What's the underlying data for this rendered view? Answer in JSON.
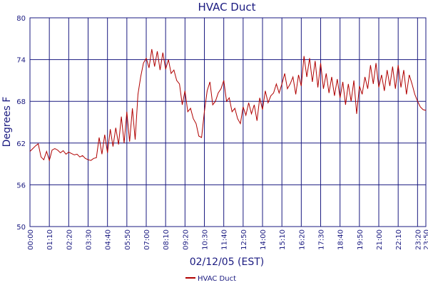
{
  "chart_data": {
    "type": "line",
    "title": "HVAC Duct",
    "x_label": "02/12/05 (EST)",
    "y_label": "Degrees F",
    "x": [
      0,
      10,
      20,
      30,
      40,
      50,
      60,
      70,
      80,
      90,
      100,
      110,
      120,
      130,
      140,
      150,
      160,
      170,
      180,
      190,
      200,
      210,
      220,
      230,
      240,
      250,
      260,
      270,
      280,
      290,
      300,
      310,
      320,
      330,
      340,
      350,
      360,
      370,
      380,
      390,
      400,
      410,
      420,
      430,
      440,
      450,
      460,
      470,
      480,
      490,
      500,
      510,
      520,
      530,
      540,
      550,
      560,
      570,
      580,
      590,
      600,
      610,
      620,
      630,
      640,
      650,
      660,
      670,
      680,
      690,
      700,
      710,
      720,
      730,
      740,
      750,
      760,
      770,
      780,
      790,
      800,
      810,
      820,
      830,
      840,
      850,
      860,
      870,
      880,
      890,
      900,
      910,
      920,
      930,
      940,
      950,
      960,
      970,
      980,
      990,
      1000,
      1010,
      1020,
      1030,
      1040,
      1050,
      1060,
      1070,
      1080,
      1090,
      1100,
      1110,
      1120,
      1130,
      1140,
      1150,
      1160,
      1170,
      1180,
      1190,
      1200,
      1210,
      1220,
      1230,
      1240,
      1250,
      1260,
      1270,
      1280,
      1290,
      1300,
      1310,
      1320,
      1330,
      1340,
      1350,
      1360,
      1370,
      1380,
      1390,
      1400,
      1410,
      1420,
      1430
    ],
    "series": [
      {
        "name": "HVAC Duct",
        "color": "#b00000",
        "values": [
          60.8,
          61.2,
          61.6,
          61.9,
          60.0,
          59.6,
          60.8,
          59.5,
          61.0,
          61.2,
          61.0,
          60.6,
          60.9,
          60.4,
          60.7,
          60.5,
          60.3,
          60.4,
          60.0,
          60.2,
          59.8,
          59.6,
          59.5,
          59.8,
          59.9,
          62.8,
          60.4,
          63.2,
          60.6,
          64.0,
          61.5,
          64.2,
          61.8,
          65.8,
          62.0,
          66.5,
          62.2,
          67.0,
          62.5,
          69.0,
          71.5,
          73.5,
          74.2,
          72.8,
          75.5,
          73.0,
          75.2,
          72.5,
          75.0,
          72.6,
          74.0,
          72.0,
          72.5,
          71.0,
          70.5,
          67.5,
          69.5,
          66.5,
          67.0,
          65.5,
          64.8,
          63.0,
          62.8,
          66.5,
          69.5,
          70.8,
          67.5,
          68.0,
          69.2,
          69.8,
          71.0,
          68.0,
          68.5,
          66.5,
          67.0,
          65.5,
          64.8,
          67.2,
          66.0,
          67.8,
          66.2,
          67.5,
          65.2,
          68.5,
          66.8,
          69.5,
          67.8,
          68.8,
          69.2,
          70.5,
          69.2,
          70.5,
          72.0,
          69.8,
          70.5,
          71.5,
          69.0,
          71.8,
          70.2,
          74.5,
          71.5,
          74.2,
          70.8,
          73.8,
          70.0,
          73.5,
          69.8,
          72.0,
          69.2,
          71.5,
          68.8,
          71.2,
          68.5,
          70.8,
          67.5,
          70.5,
          68.0,
          71.0,
          66.2,
          70.2,
          69.0,
          71.5,
          69.8,
          73.2,
          70.5,
          73.5,
          70.0,
          71.8,
          69.5,
          72.5,
          70.2,
          73.0,
          69.8,
          73.2,
          70.0,
          72.5,
          69.0,
          71.8,
          70.5,
          69.0,
          68.0,
          67.2,
          66.8,
          66.7
        ]
      }
    ],
    "xlim": [
      0,
      1430
    ],
    "xticks": [
      {
        "value": 0,
        "label": "00:00"
      },
      {
        "value": 70,
        "label": "01:10"
      },
      {
        "value": 140,
        "label": "02:20"
      },
      {
        "value": 210,
        "label": "03:30"
      },
      {
        "value": 280,
        "label": "04:40"
      },
      {
        "value": 350,
        "label": "05:50"
      },
      {
        "value": 420,
        "label": "07:00"
      },
      {
        "value": 490,
        "label": "08:10"
      },
      {
        "value": 560,
        "label": "09:20"
      },
      {
        "value": 630,
        "label": "10:30"
      },
      {
        "value": 700,
        "label": "11:40"
      },
      {
        "value": 770,
        "label": "12:50"
      },
      {
        "value": 840,
        "label": "14:00"
      },
      {
        "value": 910,
        "label": "15:10"
      },
      {
        "value": 980,
        "label": "16:20"
      },
      {
        "value": 1050,
        "label": "17:30"
      },
      {
        "value": 1120,
        "label": "18:40"
      },
      {
        "value": 1190,
        "label": "19:50"
      },
      {
        "value": 1260,
        "label": "21:00"
      },
      {
        "value": 1330,
        "label": "22:10"
      },
      {
        "value": 1400,
        "label": "23:20"
      },
      {
        "value": 1430,
        "label": "23:50"
      }
    ],
    "ylim": [
      50,
      80
    ],
    "yticks": [
      50,
      56,
      62,
      68,
      74,
      80
    ],
    "grid": true,
    "legend": "bottom"
  }
}
